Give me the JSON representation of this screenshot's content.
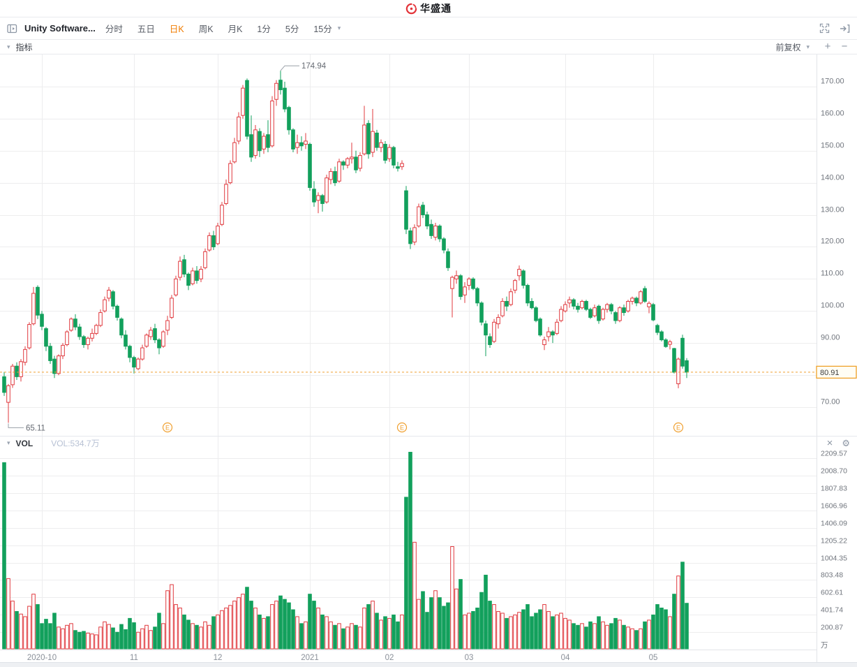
{
  "header": {
    "app_name": "华盛通"
  },
  "icons": {
    "caret_down": "▾",
    "plus": "+",
    "minus": "−",
    "close": "×",
    "gear": "⚙"
  },
  "toolbar": {
    "stock_name": "Unity Software...",
    "periods": [
      {
        "label": "分时",
        "active": false
      },
      {
        "label": "五日",
        "active": false
      },
      {
        "label": "日K",
        "active": true
      },
      {
        "label": "周K",
        "active": false
      },
      {
        "label": "月K",
        "active": false
      },
      {
        "label": "1分",
        "active": false
      },
      {
        "label": "5分",
        "active": false
      },
      {
        "label": "15分",
        "active": false
      }
    ]
  },
  "indicator_bar": {
    "label": "指标",
    "adjust_label": "前复权"
  },
  "vol_pane": {
    "title": "VOL",
    "value_label": "VOL:534.7万"
  },
  "chart_data": {
    "type": "candlestick_with_volume",
    "symbol": "Unity Software",
    "period": "日K",
    "adjust_mode": "前复权",
    "last_price": "80.91",
    "last_price_value": 80.91,
    "colors": {
      "up": "#e0393e",
      "down": "#12a05c",
      "accent": "#f0a030",
      "grid": "#ededee"
    },
    "price_axis": {
      "min": 61.5,
      "max": 180,
      "ticks": [
        {
          "value": 170,
          "label": "170.00"
        },
        {
          "value": 160,
          "label": "160.00"
        },
        {
          "value": 150,
          "label": "150.00"
        },
        {
          "value": 140,
          "label": "140.00"
        },
        {
          "value": 130,
          "label": "130.00"
        },
        {
          "value": 120,
          "label": "120.00"
        },
        {
          "value": 110,
          "label": "110.00"
        },
        {
          "value": 100,
          "label": "100.00"
        },
        {
          "value": 90,
          "label": "90.00"
        },
        {
          "value": 80,
          "label": ""
        },
        {
          "value": 70,
          "label": "70.00"
        }
      ]
    },
    "volume_axis": {
      "max": 2300,
      "unit": "万",
      "ticks": [
        {
          "value": 2209.57,
          "label": "2209.57"
        },
        {
          "value": 2008.7,
          "label": "2008.70"
        },
        {
          "value": 1807.83,
          "label": "1807.83"
        },
        {
          "value": 1606.96,
          "label": "1606.96"
        },
        {
          "value": 1406.09,
          "label": "1406.09"
        },
        {
          "value": 1205.22,
          "label": "1205.22"
        },
        {
          "value": 1004.35,
          "label": "1004.35"
        },
        {
          "value": 803.48,
          "label": "803.48"
        },
        {
          "value": 602.61,
          "label": "602.61"
        },
        {
          "value": 401.74,
          "label": "401.74"
        },
        {
          "value": 200.87,
          "label": "200.87"
        }
      ]
    },
    "months": [
      {
        "index": 9,
        "label": "2020-10"
      },
      {
        "index": 31,
        "label": "11"
      },
      {
        "index": 51,
        "label": "12"
      },
      {
        "index": 73,
        "label": "2021"
      },
      {
        "index": 92,
        "label": "02"
      },
      {
        "index": 111,
        "label": "03"
      },
      {
        "index": 134,
        "label": "04"
      },
      {
        "index": 155,
        "label": "05"
      }
    ],
    "earnings_indices": [
      39,
      95,
      161
    ],
    "annotations": {
      "high": {
        "index": 66,
        "label": "174.94"
      },
      "low": {
        "index": 1,
        "label": "65.11"
      }
    },
    "candles_format": [
      "open",
      "high",
      "low",
      "close",
      "volume_wan"
    ],
    "candles": [
      [
        79.5,
        81.0,
        73.5,
        74.6,
        2160
      ],
      [
        71.5,
        77.2,
        65.11,
        76.7,
        820
      ],
      [
        77.0,
        83.5,
        76.0,
        82.8,
        560
      ],
      [
        82.8,
        84.0,
        78.5,
        79.5,
        440
      ],
      [
        79.5,
        85.0,
        78.0,
        84.2,
        410
      ],
      [
        84.0,
        89.0,
        83.0,
        88.0,
        380
      ],
      [
        88.5,
        96.5,
        88.0,
        95.8,
        500
      ],
      [
        96.0,
        107.5,
        95.5,
        105.5,
        640
      ],
      [
        107.4,
        108.0,
        97.5,
        98.7,
        520
      ],
      [
        99.0,
        100.0,
        94.0,
        95.2,
        300
      ],
      [
        94.5,
        95.0,
        87.5,
        89.0,
        350
      ],
      [
        89.0,
        90.0,
        83.5,
        84.5,
        300
      ],
      [
        85.0,
        86.0,
        79.1,
        80.5,
        420
      ],
      [
        80.5,
        86.5,
        80.0,
        86.0,
        260
      ],
      [
        86.0,
        90.0,
        85.0,
        89.3,
        240
      ],
      [
        89.5,
        94.0,
        89.0,
        93.5,
        280
      ],
      [
        94.0,
        98.0,
        93.5,
        97.5,
        300
      ],
      [
        97.5,
        99.0,
        94.0,
        95.0,
        220
      ],
      [
        95.0,
        96.0,
        91.0,
        92.0,
        200
      ],
      [
        92.0,
        92.5,
        88.5,
        89.5,
        210
      ],
      [
        89.5,
        92.0,
        88.0,
        91.5,
        190
      ],
      [
        91.5,
        94.5,
        90.5,
        93.0,
        180
      ],
      [
        93.0,
        96.0,
        92.5,
        95.5,
        170
      ],
      [
        95.5,
        100.5,
        95.0,
        99.5,
        260
      ],
      [
        100.0,
        104.5,
        99.5,
        103.5,
        320
      ],
      [
        104.0,
        107.5,
        103.0,
        106.5,
        290
      ],
      [
        106.0,
        106.5,
        100.5,
        101.5,
        250
      ],
      [
        101.5,
        102.0,
        97.0,
        98.0,
        200
      ],
      [
        97.5,
        98.0,
        91.5,
        92.5,
        290
      ],
      [
        92.5,
        94.0,
        88.0,
        89.0,
        230
      ],
      [
        89.0,
        89.5,
        84.0,
        85.5,
        360
      ],
      [
        85.5,
        86.0,
        80.5,
        82.5,
        310
      ],
      [
        82.0,
        85.5,
        81.5,
        85.0,
        200
      ],
      [
        85.0,
        89.5,
        84.5,
        88.5,
        240
      ],
      [
        89.0,
        93.0,
        88.5,
        92.5,
        280
      ],
      [
        92.0,
        95.0,
        91.0,
        94.0,
        220
      ],
      [
        94.5,
        96.0,
        90.0,
        91.0,
        260
      ],
      [
        91.0,
        91.5,
        86.5,
        88.5,
        420
      ],
      [
        89.0,
        94.0,
        88.5,
        93.5,
        300
      ],
      [
        94.0,
        98.5,
        92.5,
        97.0,
        680
      ],
      [
        98.0,
        105.0,
        97.5,
        104.0,
        750
      ],
      [
        105.0,
        111.0,
        104.5,
        110.0,
        520
      ],
      [
        110.5,
        117.0,
        109.5,
        115.5,
        480
      ],
      [
        116.0,
        117.5,
        110.5,
        111.5,
        400
      ],
      [
        111.5,
        112.0,
        106.5,
        108.0,
        340
      ],
      [
        108.5,
        113.5,
        108.0,
        112.5,
        300
      ],
      [
        112.5,
        114.0,
        108.5,
        109.5,
        280
      ],
      [
        110.0,
        114.0,
        109.0,
        113.0,
        260
      ],
      [
        113.5,
        119.5,
        113.0,
        118.5,
        320
      ],
      [
        119.0,
        124.5,
        118.5,
        123.5,
        280
      ],
      [
        123.5,
        125.0,
        119.0,
        120.0,
        380
      ],
      [
        121.0,
        127.5,
        120.5,
        126.5,
        400
      ],
      [
        127.0,
        134.0,
        126.5,
        133.0,
        450
      ],
      [
        133.5,
        141.0,
        133.0,
        139.5,
        480
      ],
      [
        140.0,
        147.0,
        139.5,
        146.0,
        510
      ],
      [
        146.5,
        154.0,
        146.0,
        152.5,
        560
      ],
      [
        153.0,
        162.0,
        152.0,
        160.5,
        600
      ],
      [
        161.0,
        170.5,
        160.0,
        169.5,
        640
      ],
      [
        171.9,
        172.5,
        153.5,
        154.5,
        720
      ],
      [
        155.0,
        161.0,
        146.5,
        148.0,
        560
      ],
      [
        148.5,
        158.0,
        147.5,
        156.5,
        480
      ],
      [
        156.0,
        157.0,
        148.0,
        150.0,
        400
      ],
      [
        150.5,
        155.5,
        149.0,
        154.5,
        360
      ],
      [
        155.0,
        159.5,
        149.5,
        151.0,
        380
      ],
      [
        151.5,
        167.0,
        151.0,
        165.5,
        520
      ],
      [
        166.0,
        172.0,
        164.0,
        171.0,
        560
      ],
      [
        172.0,
        174.94,
        167.5,
        169.0,
        620
      ],
      [
        169.5,
        171.5,
        162.0,
        163.0,
        580
      ],
      [
        163.5,
        164.0,
        155.0,
        156.5,
        540
      ],
      [
        156.5,
        157.0,
        149.5,
        150.5,
        460
      ],
      [
        151.0,
        155.0,
        149.0,
        152.5,
        380
      ],
      [
        152.5,
        154.5,
        150.0,
        151.5,
        300
      ],
      [
        152.0,
        155.5,
        150.5,
        153.0,
        320
      ],
      [
        152.0,
        152.5,
        137.5,
        138.5,
        640
      ],
      [
        138.0,
        140.5,
        132.5,
        134.0,
        560
      ],
      [
        134.5,
        137.0,
        130.5,
        136.0,
        480
      ],
      [
        136.0,
        136.5,
        131.0,
        133.5,
        400
      ],
      [
        134.0,
        142.5,
        133.5,
        141.5,
        380
      ],
      [
        141.0,
        144.5,
        139.5,
        143.5,
        320
      ],
      [
        143.5,
        145.0,
        139.0,
        140.0,
        280
      ],
      [
        140.5,
        147.5,
        140.0,
        146.5,
        300
      ],
      [
        146.5,
        147.0,
        144.0,
        145.5,
        240
      ],
      [
        145.5,
        148.0,
        144.5,
        147.5,
        260
      ],
      [
        147.5,
        152.5,
        146.0,
        148.0,
        300
      ],
      [
        148.0,
        150.0,
        143.0,
        144.0,
        280
      ],
      [
        144.5,
        149.5,
        143.5,
        148.5,
        260
      ],
      [
        149.0,
        164.0,
        148.5,
        158.0,
        480
      ],
      [
        158.5,
        159.5,
        147.5,
        149.0,
        520
      ],
      [
        149.5,
        163.0,
        148.0,
        156.0,
        560
      ],
      [
        155.5,
        156.5,
        150.0,
        151.0,
        420
      ],
      [
        151.0,
        153.5,
        149.5,
        152.5,
        340
      ],
      [
        152.0,
        153.0,
        146.0,
        147.0,
        380
      ],
      [
        147.5,
        152.0,
        146.5,
        151.0,
        360
      ],
      [
        151.0,
        151.5,
        144.5,
        145.5,
        400
      ],
      [
        145.0,
        146.5,
        143.5,
        144.5,
        320
      ],
      [
        145.0,
        147.0,
        144.0,
        146.0,
        400
      ],
      [
        137.5,
        139.0,
        124.0,
        125.5,
        1760
      ],
      [
        125.0,
        126.0,
        119.3,
        121.0,
        2280
      ],
      [
        121.5,
        127.0,
        120.5,
        126.0,
        1240
      ],
      [
        126.5,
        133.5,
        126.0,
        132.5,
        580
      ],
      [
        133.0,
        134.0,
        129.0,
        130.0,
        670
      ],
      [
        130.0,
        131.0,
        125.5,
        126.5,
        430
      ],
      [
        127.0,
        128.5,
        122.5,
        123.5,
        600
      ],
      [
        123.0,
        127.5,
        122.0,
        126.5,
        680
      ],
      [
        126.5,
        127.0,
        121.5,
        122.5,
        600
      ],
      [
        122.5,
        123.0,
        118.0,
        119.0,
        500
      ],
      [
        118.5,
        119.5,
        112.5,
        113.5,
        540
      ],
      [
        107.0,
        111.0,
        98.0,
        110.5,
        1190
      ],
      [
        110.0,
        112.6,
        108.5,
        111.0,
        700
      ],
      [
        111.0,
        111.5,
        103.5,
        104.5,
        810
      ],
      [
        105.0,
        109.0,
        102.5,
        107.5,
        400
      ],
      [
        108.0,
        110.5,
        106.5,
        110.0,
        420
      ],
      [
        110.0,
        110.5,
        106.5,
        107.0,
        440
      ],
      [
        107.0,
        107.5,
        101.5,
        102.5,
        480
      ],
      [
        102.5,
        103.0,
        95.5,
        96.5,
        660
      ],
      [
        96.0,
        97.0,
        85.9,
        92.5,
        860
      ],
      [
        92.0,
        93.0,
        88.5,
        89.5,
        560
      ],
      [
        90.5,
        97.5,
        90.0,
        96.5,
        520
      ],
      [
        96.0,
        99.0,
        94.5,
        98.0,
        440
      ],
      [
        98.5,
        104.0,
        98.0,
        103.0,
        420
      ],
      [
        103.0,
        104.5,
        100.0,
        101.5,
        360
      ],
      [
        102.0,
        107.0,
        101.5,
        106.0,
        380
      ],
      [
        106.5,
        110.0,
        105.5,
        109.5,
        400
      ],
      [
        111.0,
        114.2,
        109.5,
        113.0,
        430
      ],
      [
        112.5,
        113.0,
        107.0,
        108.0,
        460
      ],
      [
        108.0,
        108.5,
        101.5,
        102.5,
        520
      ],
      [
        103.0,
        104.0,
        100.5,
        101.0,
        380
      ],
      [
        101.0,
        101.5,
        96.5,
        97.0,
        420
      ],
      [
        97.5,
        98.0,
        92.0,
        92.5,
        460
      ],
      [
        89.5,
        92.0,
        87.8,
        91.0,
        520
      ],
      [
        92.0,
        95.0,
        90.5,
        93.5,
        440
      ],
      [
        93.5,
        94.0,
        90.0,
        92.5,
        380
      ],
      [
        93.0,
        97.5,
        92.5,
        96.5,
        400
      ],
      [
        97.0,
        101.5,
        96.5,
        100.5,
        420
      ],
      [
        100.0,
        103.0,
        99.5,
        102.0,
        360
      ],
      [
        102.5,
        104.5,
        101.0,
        103.5,
        340
      ],
      [
        103.5,
        104.0,
        100.5,
        101.5,
        300
      ],
      [
        101.5,
        102.5,
        99.5,
        100.5,
        280
      ],
      [
        101.0,
        103.5,
        100.5,
        103.0,
        300
      ],
      [
        103.0,
        103.5,
        100.0,
        100.5,
        260
      ],
      [
        100.5,
        101.0,
        97.5,
        98.0,
        320
      ],
      [
        98.5,
        102.0,
        98.0,
        101.0,
        300
      ],
      [
        101.5,
        102.0,
        96.0,
        97.0,
        380
      ],
      [
        97.5,
        101.0,
        97.0,
        100.5,
        320
      ],
      [
        100.5,
        102.5,
        99.5,
        102.0,
        280
      ],
      [
        102.0,
        102.5,
        99.0,
        100.0,
        300
      ],
      [
        99.5,
        100.0,
        96.0,
        97.0,
        360
      ],
      [
        97.0,
        101.5,
        96.5,
        101.0,
        340
      ],
      [
        101.0,
        102.0,
        98.5,
        99.5,
        280
      ],
      [
        100.0,
        103.5,
        99.5,
        103.0,
        260
      ],
      [
        103.0,
        104.5,
        102.0,
        104.0,
        240
      ],
      [
        104.0,
        104.5,
        101.5,
        102.5,
        220
      ],
      [
        102.5,
        106.5,
        102.0,
        106.0,
        240
      ],
      [
        107.0,
        107.8,
        102.5,
        103.0,
        320
      ],
      [
        101.3,
        103.0,
        99.3,
        102.4,
        340
      ],
      [
        102.0,
        102.5,
        96.8,
        97.2,
        400
      ],
      [
        95.5,
        96.0,
        92.5,
        93.3,
        520
      ],
      [
        93.5,
        94.0,
        90.5,
        91.0,
        480
      ],
      [
        91.0,
        91.5,
        88.5,
        88.9,
        460
      ],
      [
        89.6,
        91.0,
        88.0,
        90.4,
        380
      ],
      [
        88.3,
        88.5,
        80.5,
        80.9,
        640
      ],
      [
        77.3,
        85.5,
        75.9,
        85.0,
        850
      ],
      [
        91.5,
        92.6,
        82.0,
        82.8,
        1010
      ],
      [
        84.5,
        85.3,
        79.1,
        80.91,
        534.7
      ]
    ]
  }
}
